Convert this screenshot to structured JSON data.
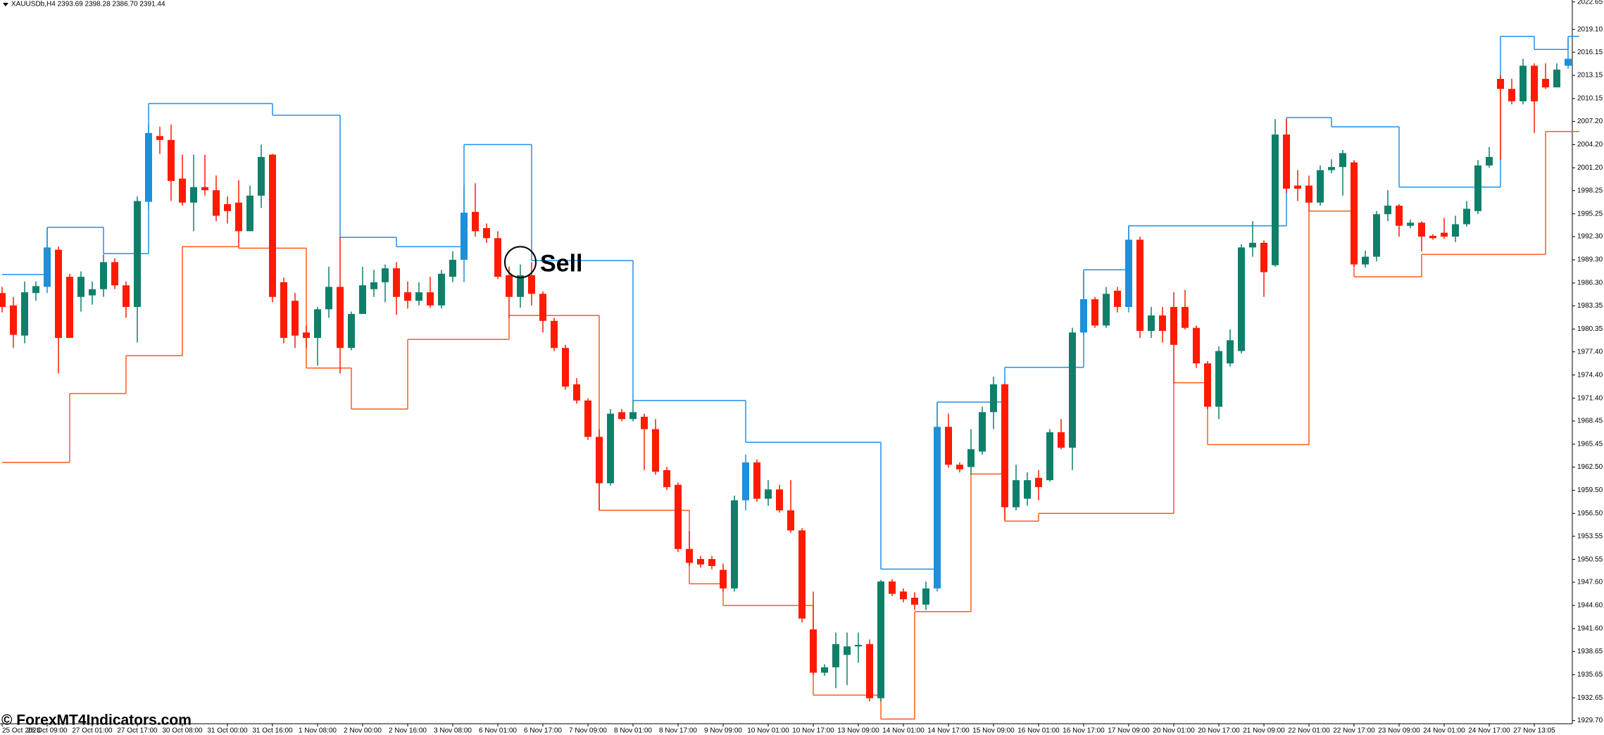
{
  "chart_data": {
    "type": "candlestick",
    "title": "XAUUSDb,H4 2393.69 2398.28 2386.70 2391.44",
    "watermark": "© ForexMT4Indicators.com",
    "up_color": "#0f7f6a",
    "down_color": "#ff1a00",
    "signal_color": "#1e8fd8",
    "signal_candles": [
      4,
      13,
      41,
      66,
      83,
      96,
      100,
      139
    ],
    "ylim": [
      1929.3,
      2022.9
    ],
    "yticks": [
      2022.65,
      {
        "value": 2019.1,
        "label": "2019.10"
      },
      2016.15,
      2013.15,
      2010.15,
      {
        "value": 2007.2,
        "label": "2007.20"
      },
      {
        "value": 2004.2,
        "label": "2004.20"
      },
      {
        "value": 2001.2,
        "label": "2001.20"
      },
      1998.25,
      1995.25,
      {
        "value": 1992.3,
        "label": "1992.30"
      },
      {
        "value": 1989.3,
        "label": "1989.30"
      },
      {
        "value": 1986.3,
        "label": "1986.30"
      },
      1983.35,
      1980.35,
      {
        "value": 1977.4,
        "label": "1977.40"
      },
      {
        "value": 1974.4,
        "label": "1974.40"
      },
      {
        "value": 1971.4,
        "label": "1971.40"
      },
      1968.45,
      1965.45,
      {
        "value": 1962.5,
        "label": "1962.50"
      },
      {
        "value": 1959.5,
        "label": "1959.50"
      },
      {
        "value": 1956.5,
        "label": "1956.50"
      },
      1953.55,
      1950.55,
      {
        "value": 1947.6,
        "label": "1947.60"
      },
      {
        "value": 1944.6,
        "label": "1944.60"
      },
      {
        "value": 1941.6,
        "label": "1941.60"
      },
      1938.65,
      1935.65,
      1932.65,
      {
        "value": 1929.7,
        "label": "1929.70"
      }
    ],
    "categories": [
      "25 Oct 2023",
      null,
      null,
      null,
      "26 Oct 09:00",
      null,
      null,
      null,
      "27 Oct 01:00",
      null,
      null,
      null,
      "27 Oct 17:00",
      null,
      null,
      null,
      "30 Oct 08:00",
      null,
      null,
      null,
      "31 Oct 00:00",
      null,
      null,
      null,
      "31 Oct 16:00",
      null,
      null,
      null,
      "1 Nov 08:00",
      null,
      null,
      null,
      "2 Nov 00:00",
      null,
      null,
      null,
      "2 Nov 16:00",
      null,
      null,
      null,
      "3 Nov 08:00",
      null,
      null,
      null,
      "6 Nov 01:00",
      null,
      null,
      null,
      "6 Nov 17:00",
      null,
      null,
      null,
      "7 Nov 09:00",
      null,
      null,
      null,
      "8 Nov 01:00",
      null,
      null,
      null,
      "8 Nov 17:00",
      null,
      null,
      null,
      "9 Nov 09:00",
      null,
      null,
      null,
      "10 Nov 01:00",
      null,
      null,
      null,
      "10 Nov 17:00",
      null,
      null,
      null,
      "13 Nov 09:00",
      null,
      null,
      null,
      "14 Nov 01:00",
      null,
      null,
      null,
      "14 Nov 17:00",
      null,
      null,
      null,
      "15 Nov 09:00",
      null,
      null,
      null,
      "16 Nov 01:00",
      null,
      null,
      null,
      "16 Nov 17:00",
      null,
      null,
      null,
      "17 Nov 09:00",
      null,
      null,
      null,
      "20 Nov 01:00",
      null,
      null,
      null,
      "20 Nov 17:00",
      null,
      null,
      null,
      "21 Nov 09:00",
      null,
      null,
      null,
      "22 Nov 01:00",
      null,
      null,
      null,
      "22 Nov 17:00",
      null,
      null,
      null,
      "23 Nov 09:00",
      null,
      null,
      null,
      "24 Nov 01:00",
      null,
      null,
      null,
      "24 Nov 17:00",
      null,
      null,
      null,
      "27 Nov 13:05",
      null,
      null,
      null
    ],
    "ohlc": [
      [
        1985.0,
        1985.8,
        1982.5,
        1983.2
      ],
      [
        1983.4,
        1984.5,
        1977.9,
        1979.6
      ],
      [
        1979.5,
        1986.5,
        1978.5,
        1985.1
      ],
      [
        1985.0,
        1986.5,
        1984.0,
        1985.9
      ],
      [
        1985.8,
        1993.4,
        1985.0,
        1990.9
      ],
      [
        1990.6,
        1991.0,
        1974.6,
        1979.2
      ],
      [
        1987.1,
        1987.5,
        1980.0,
        1979.2
      ],
      [
        1984.5,
        1987.8,
        1982.6,
        1987.1
      ],
      [
        1984.7,
        1986.5,
        1983.5,
        1985.5
      ],
      [
        1985.5,
        1990.0,
        1984.5,
        1989.0
      ],
      [
        1989.0,
        1989.5,
        1985.5,
        1986.0
      ],
      [
        1986.0,
        1986.5,
        1981.8,
        1983.2
      ],
      [
        1983.2,
        1997.5,
        1978.6,
        1996.9
      ],
      [
        1996.8,
        2006.8,
        1995.9,
        2005.7
      ],
      [
        2005.3,
        2006.5,
        2003.0,
        2004.8
      ],
      [
        2004.8,
        2006.8,
        1996.9,
        1999.5
      ],
      [
        1999.8,
        2002.9,
        1996.3,
        1996.7
      ],
      [
        1996.7,
        2002.9,
        1993.0,
        1998.7
      ],
      [
        1998.7,
        2002.9,
        1997.6,
        1998.3
      ],
      [
        1998.3,
        2000.2,
        1994.3,
        1995.0
      ],
      [
        1996.5,
        1997.5,
        1994.0,
        1995.6
      ],
      [
        1996.7,
        1999.6,
        1991.0,
        1993.0
      ],
      [
        1993.0,
        1998.9,
        1993.0,
        1997.6
      ],
      [
        1997.6,
        2004.2,
        1996.0,
        2002.6
      ],
      [
        2002.9,
        2003.0,
        1983.8,
        1984.5
      ],
      [
        1986.4,
        1987.0,
        1978.5,
        1979.2
      ],
      [
        1984.0,
        1985.0,
        1977.9,
        1979.5
      ],
      [
        1979.9,
        1980.8,
        1977.9,
        1979.2
      ],
      [
        1979.2,
        1983.2,
        1975.6,
        1982.9
      ],
      [
        1982.9,
        1988.4,
        1981.8,
        1985.8
      ],
      [
        1985.8,
        1992.3,
        1974.6,
        1977.9
      ],
      [
        1977.9,
        1982.6,
        1977.6,
        1982.3
      ],
      [
        1982.3,
        1988.4,
        1983.0,
        1986.0
      ],
      [
        1985.5,
        1988.0,
        1984.5,
        1986.4
      ],
      [
        1986.4,
        1988.7,
        1983.8,
        1988.2
      ],
      [
        1988.2,
        1989.0,
        1982.2,
        1984.5
      ],
      [
        1985.1,
        1986.5,
        1983.0,
        1984.0
      ],
      [
        1984.0,
        1986.4,
        1983.4,
        1985.1
      ],
      [
        1985.1,
        1987.1,
        1983.1,
        1983.4
      ],
      [
        1983.4,
        1988.0,
        1983.0,
        1987.5
      ],
      [
        1987.1,
        1990.4,
        1986.4,
        1989.3
      ],
      [
        1989.3,
        1998.9,
        1986.4,
        1995.4
      ],
      [
        1995.5,
        1999.2,
        1992.3,
        1993.0
      ],
      [
        1993.4,
        1994.0,
        1991.5,
        1992.1
      ],
      [
        1992.1,
        1993.0,
        1986.8,
        1987.1
      ],
      [
        1987.3,
        1988.4,
        1981.8,
        1984.5
      ],
      [
        1984.5,
        1988.7,
        1983.1,
        1987.3
      ],
      [
        1987.3,
        1989.0,
        1983.4,
        1984.9
      ],
      [
        1984.9,
        1985.2,
        1979.9,
        1981.4
      ],
      [
        1981.4,
        1981.8,
        1977.5,
        1977.9
      ],
      [
        1977.9,
        1978.3,
        1972.5,
        1972.9
      ],
      [
        1973.2,
        1974.0,
        1970.7,
        1971.1
      ],
      [
        1971.1,
        1971.4,
        1966.0,
        1966.4
      ],
      [
        1966.4,
        1967.4,
        1956.9,
        1960.4
      ],
      [
        1960.4,
        1970.0,
        1960.1,
        1969.4
      ],
      [
        1969.6,
        1970.0,
        1968.4,
        1968.7
      ],
      [
        1968.7,
        1971.1,
        1968.4,
        1969.6
      ],
      [
        1969.0,
        1969.4,
        1962.1,
        1967.4
      ],
      [
        1967.4,
        1968.7,
        1961.5,
        1961.9
      ],
      [
        1962.1,
        1962.5,
        1959.5,
        1959.9
      ],
      [
        1960.2,
        1960.5,
        1951.5,
        1951.9
      ],
      [
        1951.9,
        1954.2,
        1949.7,
        1950.1
      ],
      [
        1950.6,
        1951.0,
        1949.5,
        1949.9
      ],
      [
        1950.6,
        1951.0,
        1949.3,
        1949.7
      ],
      [
        1949.2,
        1950.0,
        1946.4,
        1946.8
      ],
      [
        1946.8,
        1958.8,
        1946.4,
        1958.2
      ],
      [
        1958.2,
        1964.1,
        1956.9,
        1963.1
      ],
      [
        1963.1,
        1963.5,
        1958.0,
        1958.4
      ],
      [
        1958.4,
        1960.8,
        1957.5,
        1959.6
      ],
      [
        1959.6,
        1960.2,
        1956.6,
        1956.9
      ],
      [
        1956.9,
        1960.8,
        1954.0,
        1954.3
      ],
      [
        1954.3,
        1954.6,
        1942.4,
        1942.9
      ],
      [
        1941.5,
        1946.4,
        1935.6,
        1935.9
      ],
      [
        1935.9,
        1937.0,
        1935.5,
        1936.6
      ],
      [
        1936.6,
        1941.1,
        1933.9,
        1939.6
      ],
      [
        1938.2,
        1941.1,
        1934.3,
        1939.3
      ],
      [
        1939.3,
        1941.1,
        1937.2,
        1939.5
      ],
      [
        1939.6,
        1940.2,
        1932.2,
        1932.6
      ],
      [
        1932.6,
        1947.9,
        1932.2,
        1947.7
      ],
      [
        1947.7,
        1948.0,
        1945.8,
        1946.1
      ],
      [
        1946.4,
        1946.8,
        1945.0,
        1945.4
      ],
      [
        1945.6,
        1946.3,
        1944.0,
        1944.7
      ],
      [
        1944.7,
        1947.7,
        1944.0,
        1946.8
      ],
      [
        1946.8,
        1970.7,
        1946.4,
        1967.7
      ],
      [
        1967.7,
        1969.4,
        1962.4,
        1962.8
      ],
      [
        1962.8,
        1963.1,
        1961.8,
        1962.2
      ],
      [
        1962.5,
        1967.4,
        1961.5,
        1964.8
      ],
      [
        1964.5,
        1970.3,
        1964.1,
        1969.6
      ],
      [
        1969.6,
        1974.2,
        1967.4,
        1973.2
      ],
      [
        1973.2,
        1973.3,
        1955.6,
        1957.3
      ],
      [
        1957.3,
        1962.8,
        1956.9,
        1960.8
      ],
      [
        1958.4,
        1961.8,
        1957.5,
        1960.8
      ],
      [
        1961.1,
        1962.1,
        1958.2,
        1959.9
      ],
      [
        1960.8,
        1967.4,
        1960.6,
        1967.0
      ],
      [
        1967.0,
        1968.7,
        1964.8,
        1965.0
      ],
      [
        1965.0,
        1980.5,
        1962.1,
        1979.9
      ],
      [
        1979.9,
        1987.7,
        1979.5,
        1984.2
      ],
      [
        1984.2,
        1984.5,
        1980.5,
        1980.8
      ],
      [
        1980.8,
        1985.8,
        1980.5,
        1984.9
      ],
      [
        1985.3,
        1985.8,
        1982.5,
        1983.2
      ],
      [
        1983.2,
        1993.7,
        1982.5,
        1991.9
      ],
      [
        1991.9,
        1992.3,
        1979.2,
        1980.1
      ],
      [
        1980.1,
        1983.2,
        1979.2,
        1982.1
      ],
      [
        1982.1,
        1983.2,
        1978.6,
        1980.1
      ],
      [
        1983.2,
        1985.1,
        1973.3,
        1978.3
      ],
      [
        1983.2,
        1985.4,
        1980.3,
        1980.5
      ],
      [
        1980.5,
        1980.8,
        1975.3,
        1975.9
      ],
      [
        1975.9,
        1976.2,
        1970.0,
        1970.3
      ],
      [
        1970.3,
        1978.1,
        1968.7,
        1977.5
      ],
      [
        1975.9,
        1980.3,
        1975.5,
        1978.9
      ],
      [
        1977.5,
        1991.3,
        1977.2,
        1990.9
      ],
      [
        1990.9,
        1994.3,
        1989.7,
        1991.5
      ],
      [
        1991.5,
        1991.8,
        1984.5,
        1987.7
      ],
      [
        1988.6,
        2007.5,
        1988.4,
        2005.5
      ],
      [
        2005.5,
        2007.5,
        1997.9,
        1998.5
      ],
      [
        1998.9,
        2000.9,
        1996.9,
        1998.5
      ],
      [
        1998.9,
        2000.2,
        1995.6,
        1996.7
      ],
      [
        1996.7,
        2001.5,
        1996.3,
        2000.9
      ],
      [
        2000.9,
        2002.3,
        2000.5,
        2001.3
      ],
      [
        2001.3,
        2003.5,
        1997.6,
        2003.1
      ],
      [
        2001.9,
        2002.2,
        1988.4,
        1988.7
      ],
      [
        1988.7,
        1990.5,
        1988.3,
        1989.7
      ],
      [
        1989.7,
        1995.6,
        1989.1,
        1995.2
      ],
      [
        1995.2,
        1998.3,
        1994.3,
        1996.3
      ],
      [
        1996.3,
        1996.5,
        1992.3,
        1993.7
      ],
      [
        1993.7,
        1994.5,
        1993.4,
        1994.1
      ],
      [
        1994.1,
        1994.3,
        1990.4,
        1992.3
      ],
      [
        1992.4,
        1992.6,
        1991.9,
        1992.1
      ],
      [
        1992.8,
        1994.7,
        1992.0,
        1992.3
      ],
      [
        1992.3,
        1995.0,
        1991.6,
        1993.9
      ],
      [
        1993.9,
        1996.9,
        1993.6,
        1995.9
      ],
      [
        1995.6,
        2002.2,
        1995.2,
        2001.5
      ],
      [
        2001.5,
        2003.9,
        2001.2,
        2002.6
      ],
      [
        2012.7,
        2013.2,
        2002.2,
        2011.4
      ],
      [
        2011.4,
        2012.7,
        2009.4,
        2009.8
      ],
      [
        2009.8,
        2015.3,
        2009.4,
        2014.4
      ],
      [
        2014.4,
        2014.7,
        2005.7,
        2009.8
      ],
      [
        2012.7,
        2014.7,
        2011.4,
        2011.6
      ],
      [
        2011.6,
        2014.7,
        2012.3,
        2013.9
      ],
      [
        2014.4,
        2017.9,
        2014.0,
        2015.3
      ]
    ],
    "resistance": {
      "color": "#1e8fef",
      "segments": [
        [
          0,
          4,
          1987.4
        ],
        [
          4,
          9,
          1993.5
        ],
        [
          9,
          13,
          1990.1
        ],
        [
          13,
          24,
          2009.5
        ],
        [
          24,
          30,
          2008.0
        ],
        [
          30,
          35,
          1992.2
        ],
        [
          35,
          41,
          1991.0
        ],
        [
          41,
          47,
          2004.2
        ],
        [
          47,
          56,
          1989.2
        ],
        [
          56,
          66,
          1971.1
        ],
        [
          66,
          78,
          1965.7
        ],
        [
          78,
          83,
          1949.3
        ],
        [
          83,
          89,
          1970.9
        ],
        [
          89,
          96,
          1975.4
        ],
        [
          96,
          100,
          1988.0
        ],
        [
          100,
          114,
          1993.7
        ],
        [
          114,
          118,
          2007.7
        ],
        [
          118,
          124,
          2006.5
        ],
        [
          124,
          133,
          1998.7
        ],
        [
          133,
          136,
          2018.2
        ],
        [
          136,
          139,
          2016.5
        ],
        [
          139,
          140,
          2018.2
        ]
      ]
    },
    "support": {
      "color": "#ff5a1a",
      "segments": [
        [
          0,
          6,
          1963.1
        ],
        [
          6,
          11,
          1972.0
        ],
        [
          11,
          16,
          1976.9
        ],
        [
          16,
          21,
          1991.0
        ],
        [
          21,
          27,
          1990.8
        ],
        [
          27,
          31,
          1975.3
        ],
        [
          31,
          36,
          1970.0
        ],
        [
          36,
          45,
          1979.0
        ],
        [
          45,
          53,
          1982.1
        ],
        [
          53,
          61,
          1956.9
        ],
        [
          61,
          64,
          1947.4
        ],
        [
          64,
          72,
          1944.6
        ],
        [
          72,
          78,
          1933.0
        ],
        [
          78,
          81,
          1929.9
        ],
        [
          81,
          86,
          1943.8
        ],
        [
          86,
          89,
          1961.6
        ],
        [
          89,
          92,
          1955.5
        ],
        [
          92,
          104,
          1956.5
        ],
        [
          104,
          107,
          1973.4
        ],
        [
          107,
          116,
          1965.4
        ],
        [
          116,
          120,
          1995.6
        ],
        [
          120,
          126,
          1987.1
        ],
        [
          126,
          137,
          1990.0
        ],
        [
          137,
          140,
          2005.9
        ]
      ]
    },
    "annotation": {
      "text": "Sell",
      "index": 46,
      "price": 1989.0
    }
  }
}
